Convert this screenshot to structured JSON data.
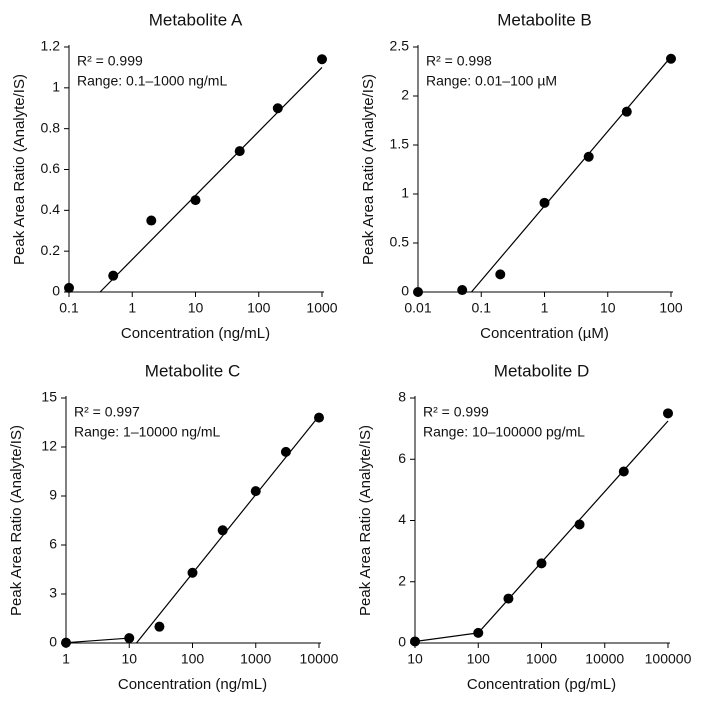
{
  "chart_data": [
    {
      "type": "scatter",
      "title": "Metabolite A",
      "x_label": "Concentration (ng/mL)",
      "y_label": "Peak Area Ratio (Analyte/IS)",
      "annotations": [
        "R² = 0.999",
        "Range: 0.1–1000 ng/mL"
      ],
      "log_x": true,
      "color": "#000000",
      "x": [
        0.1,
        0.5,
        2,
        10,
        50,
        200,
        1000
      ],
      "values": [
        0.02,
        0.08,
        0.35,
        0.45,
        0.69,
        0.9,
        1.14
      ],
      "fit_lines": [
        {
          "x": [
            0.31,
            1000
          ],
          "values": [
            0,
            1.1
          ]
        }
      ],
      "xlim": [
        0.1,
        1000
      ],
      "xticks": [
        0.1,
        1,
        10,
        100,
        1000
      ],
      "ylim": [
        0,
        1.2
      ],
      "yticks": [
        0,
        0.2,
        0.4,
        0.6,
        0.8,
        1.0,
        1.2
      ]
    },
    {
      "type": "scatter",
      "title": "Metabolite B",
      "x_label": "Concentration (µM)",
      "y_label": "Peak Area Ratio (Analyte/IS)",
      "annotations": [
        "R² = 0.998",
        "Range: 0.01–100 µM"
      ],
      "log_x": true,
      "color": "#000000",
      "x": [
        0.01,
        0.05,
        0.2,
        1,
        5,
        20,
        100
      ],
      "values": [
        0,
        0.02,
        0.18,
        0.91,
        1.38,
        1.84,
        2.38
      ],
      "fit_lines": [
        {
          "x": [
            0.07,
            100
          ],
          "values": [
            0,
            2.4
          ]
        }
      ],
      "xlim": [
        0.01,
        100
      ],
      "xticks": [
        0.01,
        0.1,
        1,
        10,
        100
      ],
      "ylim": [
        0,
        2.5
      ],
      "yticks": [
        0,
        0.5,
        1.0,
        1.5,
        2.0,
        2.5
      ]
    },
    {
      "type": "scatter",
      "title": "Metabolite C",
      "x_label": "Concentration (ng/mL)",
      "y_label": "Peak Area Ratio (Analyte/IS)",
      "annotations": [
        "R² = 0.997",
        "Range: 1–10000 ng/mL"
      ],
      "log_x": true,
      "color": "#000000",
      "x": [
        1,
        10,
        30,
        100,
        300,
        1000,
        3000,
        10000
      ],
      "values": [
        0.02,
        0.3,
        1.0,
        4.3,
        6.9,
        9.3,
        11.7,
        13.8
      ],
      "fit_lines": [
        {
          "x": [
            1,
            10
          ],
          "values": [
            0.02,
            0.3
          ]
        },
        {
          "x": [
            13,
            10000
          ],
          "values": [
            0,
            13.9
          ]
        }
      ],
      "xlim": [
        1,
        10000
      ],
      "xticks": [
        1,
        10,
        100,
        1000,
        10000
      ],
      "ylim": [
        0,
        15
      ],
      "yticks": [
        0,
        3,
        6,
        9,
        12,
        15
      ]
    },
    {
      "type": "scatter",
      "title": "Metabolite D",
      "x_label": "Concentration (pg/mL)",
      "y_label": "Peak Area Ratio (Analyte/IS)",
      "annotations": [
        "R² = 0.999",
        "Range: 10–100000 pg/mL"
      ],
      "log_x": true,
      "color": "#000000",
      "x": [
        10,
        100,
        300,
        1000,
        4000,
        20000,
        100000
      ],
      "values": [
        0.05,
        0.33,
        1.45,
        2.6,
        3.87,
        5.6,
        7.5
      ],
      "fit_lines": [
        {
          "x": [
            10,
            100,
            100000
          ],
          "values": [
            0.05,
            0.33,
            7.25
          ]
        }
      ],
      "xlim": [
        10,
        100000
      ],
      "xticks": [
        10,
        100,
        1000,
        10000,
        100000
      ],
      "ylim": [
        0,
        8
      ],
      "yticks": [
        0,
        2,
        4,
        6,
        8
      ]
    }
  ]
}
